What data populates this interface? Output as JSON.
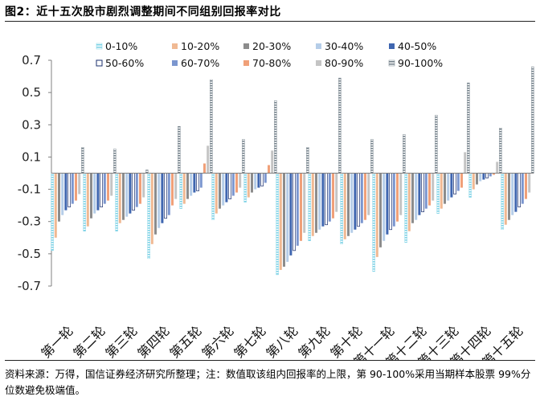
{
  "header": {
    "title": "图2：近十五次股市剧烈调整期间不同组别回报率对比"
  },
  "footer": {
    "source": "资料来源：万得，国信证券经济研究所整理；注：数值取该组内回报率的上限，第 90-100%采用当期样本股票 99%分位数避免极端值。"
  },
  "chart_data": {
    "type": "bar",
    "title": "图2：近十五次股市剧烈调整期间不同组别回报率对比",
    "xlabel": "",
    "ylabel": "",
    "ylim": [
      -0.7,
      0.7
    ],
    "yticks": [
      0.7,
      0.5,
      0.3,
      0.1,
      -0.1,
      -0.3,
      -0.5,
      -0.7
    ],
    "ytick_labels": [
      "0.7",
      "0.5",
      "0.3",
      "0.1",
      "-0.1",
      "-0.3",
      "-0.5",
      "-0.7"
    ],
    "grid": false,
    "legend_position": "top",
    "categories": [
      "第一轮",
      "第二轮",
      "第三轮",
      "第四轮",
      "第五轮",
      "第六轮",
      "第七轮",
      "第八轮",
      "第九轮",
      "第十轮",
      "第十一轮",
      "第十二轮",
      "第十三轮",
      "第十四轮",
      "第十五轮"
    ],
    "series": [
      {
        "name": "0-10%",
        "color": "#7fd3e6",
        "style": "hatch",
        "values": [
          -0.48,
          -0.36,
          -0.36,
          -0.53,
          -0.22,
          -0.29,
          -0.18,
          -0.63,
          -0.42,
          -0.44,
          -0.61,
          -0.43,
          -0.25,
          -0.15,
          -0.35
        ]
      },
      {
        "name": "10-20%",
        "color": "#f0b993",
        "style": "solid",
        "values": [
          -0.4,
          -0.33,
          -0.31,
          -0.44,
          -0.19,
          -0.25,
          -0.15,
          -0.6,
          -0.39,
          -0.41,
          -0.52,
          -0.36,
          -0.22,
          -0.1,
          -0.32
        ]
      },
      {
        "name": "20-30%",
        "color": "#8c8c8c",
        "style": "solid",
        "values": [
          -0.3,
          -0.28,
          -0.29,
          -0.38,
          -0.16,
          -0.22,
          -0.12,
          -0.58,
          -0.37,
          -0.39,
          -0.46,
          -0.31,
          -0.19,
          -0.07,
          -0.29
        ]
      },
      {
        "name": "30-40%",
        "color": "#b5cde8",
        "style": "solid",
        "values": [
          -0.26,
          -0.25,
          -0.27,
          -0.34,
          -0.14,
          -0.2,
          -0.1,
          -0.55,
          -0.35,
          -0.37,
          -0.42,
          -0.29,
          -0.17,
          -0.05,
          -0.26
        ]
      },
      {
        "name": "40-50%",
        "color": "#3f66b0",
        "style": "solid",
        "values": [
          -0.23,
          -0.23,
          -0.25,
          -0.31,
          -0.12,
          -0.18,
          -0.09,
          -0.51,
          -0.33,
          -0.35,
          -0.38,
          -0.26,
          -0.15,
          -0.04,
          -0.24
        ]
      },
      {
        "name": "50-60%",
        "color": "#ffffff",
        "style": "outline",
        "values": [
          -0.21,
          -0.21,
          -0.23,
          -0.28,
          -0.11,
          -0.16,
          -0.08,
          -0.48,
          -0.32,
          -0.33,
          -0.35,
          -0.24,
          -0.13,
          -0.03,
          -0.21
        ]
      },
      {
        "name": "60-70%",
        "color": "#7b96cf",
        "style": "solid",
        "values": [
          -0.19,
          -0.19,
          -0.21,
          -0.26,
          -0.09,
          -0.14,
          -0.06,
          -0.45,
          -0.3,
          -0.31,
          -0.33,
          -0.22,
          -0.11,
          -0.02,
          -0.19
        ]
      },
      {
        "name": "70-80%",
        "color": "#f0a079",
        "style": "solid",
        "values": [
          -0.17,
          -0.17,
          -0.19,
          -0.2,
          0.06,
          -0.12,
          0.05,
          -0.42,
          -0.28,
          -0.29,
          -0.3,
          -0.2,
          -0.09,
          -0.01,
          -0.16
        ]
      },
      {
        "name": "80-90%",
        "color": "#c4c4c4",
        "style": "solid",
        "values": [
          -0.13,
          -0.14,
          -0.15,
          -0.16,
          0.17,
          -0.09,
          0.14,
          -0.37,
          -0.24,
          -0.26,
          -0.26,
          -0.17,
          0.13,
          0.07,
          -0.12
        ]
      },
      {
        "name": "90-100%",
        "color": "#76838c",
        "style": "hatch",
        "values": [
          0.16,
          0.15,
          0.02,
          0.29,
          0.58,
          0.21,
          0.45,
          0.16,
          0.59,
          0.21,
          0.24,
          0.36,
          0.56,
          0.28,
          0.66
        ]
      }
    ]
  }
}
